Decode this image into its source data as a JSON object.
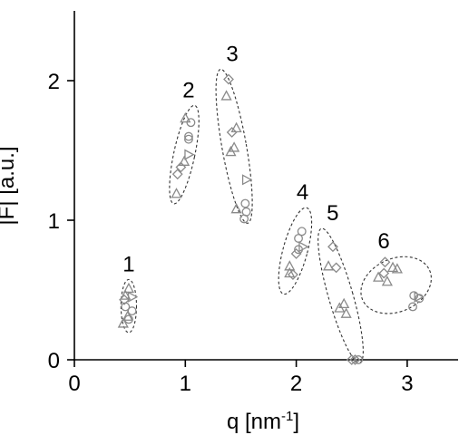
{
  "chart_data": {
    "type": "scatter",
    "title": "",
    "xlabel": "q [nm",
    "xlabel_sup": "-1",
    "xlabel_close": "]",
    "ylabel": "|F| [a.u.]",
    "xlim": [
      0,
      3.5
    ],
    "ylim": [
      0,
      2.5
    ],
    "xticks": [
      0,
      1,
      2,
      3
    ],
    "yticks": [
      0,
      1,
      2
    ],
    "xtick_labels": [
      "0",
      "1",
      "2",
      "3"
    ],
    "ytick_labels": [
      "0",
      "1",
      "2"
    ],
    "grid": false,
    "marker_color": "#8a8a8a",
    "groups": [
      {
        "label": "1",
        "ellipse": {
          "cx": 0.49,
          "cy": 0.385,
          "rx": 0.07,
          "ry": 0.19,
          "angle": 0
        },
        "points": [
          {
            "shape": "triangle",
            "x": 0.46,
            "y": 0.46
          },
          {
            "shape": "triangle",
            "x": 0.49,
            "y": 0.51
          },
          {
            "shape": "diamond",
            "x": 0.45,
            "y": 0.43
          },
          {
            "shape": "triangle-right",
            "x": 0.52,
            "y": 0.45
          },
          {
            "shape": "circle",
            "x": 0.46,
            "y": 0.38
          },
          {
            "shape": "circle",
            "x": 0.52,
            "y": 0.35
          },
          {
            "shape": "triangle",
            "x": 0.48,
            "y": 0.31
          },
          {
            "shape": "circle",
            "x": 0.49,
            "y": 0.29
          },
          {
            "shape": "triangle",
            "x": 0.44,
            "y": 0.26
          }
        ]
      },
      {
        "label": "2",
        "ellipse": {
          "cx": 0.99,
          "cy": 1.47,
          "rx": 0.095,
          "ry": 0.36,
          "angle": 12
        },
        "points": [
          {
            "shape": "triangle",
            "x": 1.0,
            "y": 1.73
          },
          {
            "shape": "circle",
            "x": 1.05,
            "y": 1.7
          },
          {
            "shape": "circle",
            "x": 1.03,
            "y": 1.6
          },
          {
            "shape": "circle",
            "x": 1.03,
            "y": 1.58
          },
          {
            "shape": "triangle-right",
            "x": 1.03,
            "y": 1.47
          },
          {
            "shape": "triangle",
            "x": 0.99,
            "y": 1.42
          },
          {
            "shape": "diamond",
            "x": 0.96,
            "y": 1.38
          },
          {
            "shape": "diamond",
            "x": 0.93,
            "y": 1.33
          },
          {
            "shape": "triangle",
            "x": 0.92,
            "y": 1.19
          }
        ]
      },
      {
        "label": "3",
        "ellipse": {
          "cx": 1.44,
          "cy": 1.53,
          "rx": 0.11,
          "ry": 0.56,
          "angle": -10
        },
        "points": [
          {
            "shape": "diamond",
            "x": 1.39,
            "y": 2.01
          },
          {
            "shape": "triangle",
            "x": 1.37,
            "y": 1.89
          },
          {
            "shape": "triangle",
            "x": 1.46,
            "y": 1.66
          },
          {
            "shape": "diamond",
            "x": 1.42,
            "y": 1.63
          },
          {
            "shape": "triangle",
            "x": 1.44,
            "y": 1.52
          },
          {
            "shape": "triangle",
            "x": 1.41,
            "y": 1.49
          },
          {
            "shape": "triangle-right",
            "x": 1.55,
            "y": 1.29
          },
          {
            "shape": "circle",
            "x": 1.54,
            "y": 1.12
          },
          {
            "shape": "triangle",
            "x": 1.46,
            "y": 1.08
          },
          {
            "shape": "circle",
            "x": 1.55,
            "y": 1.06
          },
          {
            "shape": "circle",
            "x": 1.53,
            "y": 1.01
          }
        ]
      },
      {
        "label": "4",
        "ellipse": {
          "cx": 1.99,
          "cy": 0.78,
          "rx": 0.11,
          "ry": 0.32,
          "angle": 15
        },
        "points": [
          {
            "shape": "circle",
            "x": 2.05,
            "y": 0.92
          },
          {
            "shape": "circle",
            "x": 2.02,
            "y": 0.87
          },
          {
            "shape": "triangle-right",
            "x": 2.06,
            "y": 0.81
          },
          {
            "shape": "circle",
            "x": 2.02,
            "y": 0.79
          },
          {
            "shape": "diamond",
            "x": 2.0,
            "y": 0.76
          },
          {
            "shape": "triangle",
            "x": 1.94,
            "y": 0.67
          },
          {
            "shape": "triangle",
            "x": 1.94,
            "y": 0.62
          },
          {
            "shape": "diamond",
            "x": 1.97,
            "y": 0.61
          }
        ]
      },
      {
        "label": "5",
        "ellipse": {
          "cx": 2.4,
          "cy": 0.46,
          "rx": 0.11,
          "ry": 0.5,
          "angle": -16
        },
        "points": [
          {
            "shape": "diamond",
            "x": 2.33,
            "y": 0.81
          },
          {
            "shape": "triangle",
            "x": 2.29,
            "y": 0.67
          },
          {
            "shape": "diamond",
            "x": 2.36,
            "y": 0.66
          },
          {
            "shape": "triangle",
            "x": 2.43,
            "y": 0.4
          },
          {
            "shape": "triangle",
            "x": 2.39,
            "y": 0.37
          },
          {
            "shape": "triangle",
            "x": 2.45,
            "y": 0.33
          },
          {
            "shape": "diamond",
            "x": 2.5,
            "y": 0.0
          },
          {
            "shape": "diamond",
            "x": 2.53,
            "y": 0.0
          },
          {
            "shape": "circle",
            "x": 2.56,
            "y": 0.0
          }
        ]
      },
      {
        "label": "6",
        "ellipse": {
          "cx": 2.9,
          "cy": 0.535,
          "rx": 0.33,
          "ry": 0.19,
          "angle": -24
        },
        "points": [
          {
            "shape": "diamond",
            "x": 2.8,
            "y": 0.7
          },
          {
            "shape": "triangle",
            "x": 2.87,
            "y": 0.66
          },
          {
            "shape": "triangle",
            "x": 2.91,
            "y": 0.65
          },
          {
            "shape": "diamond",
            "x": 2.79,
            "y": 0.62
          },
          {
            "shape": "triangle",
            "x": 2.74,
            "y": 0.59
          },
          {
            "shape": "triangle",
            "x": 2.82,
            "y": 0.56
          },
          {
            "shape": "circle",
            "x": 3.06,
            "y": 0.46
          },
          {
            "shape": "triangle-right",
            "x": 3.1,
            "y": 0.45
          },
          {
            "shape": "circle",
            "x": 3.11,
            "y": 0.44
          },
          {
            "shape": "circle",
            "x": 3.05,
            "y": 0.38
          }
        ]
      }
    ]
  }
}
